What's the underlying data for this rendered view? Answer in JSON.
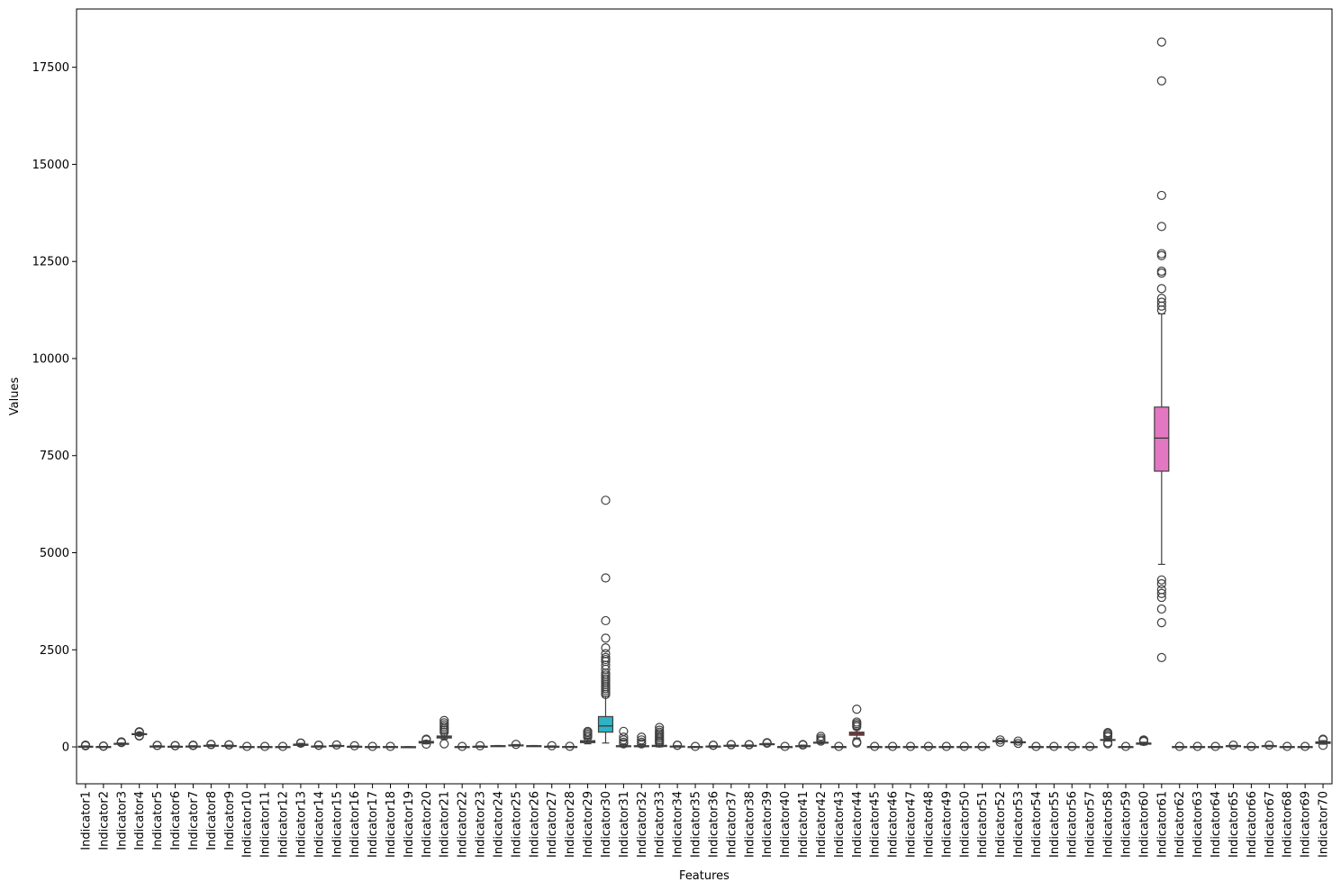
{
  "chart_data": {
    "type": "box",
    "title": "",
    "xlabel": "Features",
    "ylabel": "Values",
    "ylim": [
      -950,
      19000
    ],
    "yticks": [
      0,
      2500,
      5000,
      7500,
      10000,
      12500,
      15000,
      17500
    ],
    "ytick_labels": [
      "0",
      "2500",
      "5000",
      "7500",
      "10000",
      "12500",
      "15000",
      "17500"
    ],
    "grid": false,
    "legend": "none",
    "categories": [
      "Indicator1",
      "Indicator2",
      "Indicator3",
      "Indicator4",
      "Indicator5",
      "Indicator6",
      "Indicator7",
      "Indicator8",
      "Indicator9",
      "Indicator10",
      "Indicator11",
      "Indicator12",
      "Indicator13",
      "Indicator14",
      "Indicator15",
      "Indicator16",
      "Indicator17",
      "Indicator18",
      "Indicator19",
      "Indicator20",
      "Indicator21",
      "Indicator22",
      "Indicator23",
      "Indicator24",
      "Indicator25",
      "Indicator26",
      "Indicator27",
      "Indicator28",
      "Indicator29",
      "Indicator30",
      "Indicator31",
      "Indicator32",
      "Indicator33",
      "Indicator34",
      "Indicator35",
      "Indicator36",
      "Indicator37",
      "Indicator38",
      "Indicator39",
      "Indicator40",
      "Indicator41",
      "Indicator42",
      "Indicator43",
      "Indicator44",
      "Indicator45",
      "Indicator46",
      "Indicator47",
      "Indicator48",
      "Indicator49",
      "Indicator50",
      "Indicator51",
      "Indicator52",
      "Indicator53",
      "Indicator54",
      "Indicator55",
      "Indicator56",
      "Indicator57",
      "Indicator58",
      "Indicator59",
      "Indicator60",
      "Indicator61",
      "Indicator62",
      "Indicator63",
      "Indicator64",
      "Indicator65",
      "Indicator66",
      "Indicator67",
      "Indicator68",
      "Indicator69",
      "Indicator70"
    ],
    "boxes": [
      {
        "q1": 5,
        "median": 10,
        "q3": 15,
        "whisker_low": 0,
        "whisker_high": 25,
        "outliers": [
          30,
          40,
          45
        ],
        "color": "#3274a1"
      },
      {
        "q1": 2,
        "median": 5,
        "q3": 8,
        "whisker_low": 0,
        "whisker_high": 12,
        "outliers": [
          18,
          22
        ],
        "color": "#e1812c"
      },
      {
        "q1": 70,
        "median": 80,
        "q3": 90,
        "whisker_low": 60,
        "whisker_high": 100,
        "outliers": [
          110,
          120,
          130
        ],
        "color": "#3a923a"
      },
      {
        "q1": 320,
        "median": 330,
        "q3": 340,
        "whisker_low": 300,
        "whisker_high": 360,
        "outliers": [
          280,
          290,
          375,
          385,
          390
        ],
        "color": "#c03d3e"
      },
      {
        "q1": 10,
        "median": 15,
        "q3": 20,
        "whisker_low": 0,
        "whisker_high": 30,
        "outliers": [
          35,
          40
        ],
        "color": "#9372b2"
      },
      {
        "q1": 5,
        "median": 10,
        "q3": 15,
        "whisker_low": 0,
        "whisker_high": 25,
        "outliers": [
          30,
          35
        ],
        "color": "#845b53"
      },
      {
        "q1": 5,
        "median": 10,
        "q3": 20,
        "whisker_low": 0,
        "whisker_high": 30,
        "outliers": [
          35,
          40,
          45
        ],
        "color": "#d684bd"
      },
      {
        "q1": 20,
        "median": 30,
        "q3": 40,
        "whisker_low": 10,
        "whisker_high": 55,
        "outliers": [
          60,
          65
        ],
        "color": "#7f7f7f"
      },
      {
        "q1": 15,
        "median": 25,
        "q3": 35,
        "whisker_low": 5,
        "whisker_high": 45,
        "outliers": [
          50,
          55
        ],
        "color": "#a9aa35"
      },
      {
        "q1": 2,
        "median": 4,
        "q3": 6,
        "whisker_low": 0,
        "whisker_high": 10,
        "outliers": [
          12
        ],
        "color": "#2eb2c6"
      },
      {
        "q1": 2,
        "median": 4,
        "q3": 6,
        "whisker_low": 0,
        "whisker_high": 10,
        "outliers": [
          12
        ],
        "color": "#3274a1"
      },
      {
        "q1": 2,
        "median": 4,
        "q3": 6,
        "whisker_low": 0,
        "whisker_high": 10,
        "outliers": [
          12
        ],
        "color": "#e1812c"
      },
      {
        "q1": 40,
        "median": 55,
        "q3": 70,
        "whisker_low": 20,
        "whisker_high": 90,
        "outliers": [
          95,
          100
        ],
        "color": "#3a923a"
      },
      {
        "q1": 5,
        "median": 10,
        "q3": 20,
        "whisker_low": 0,
        "whisker_high": 30,
        "outliers": [
          40,
          45
        ],
        "color": "#c03d3e"
      },
      {
        "q1": 15,
        "median": 25,
        "q3": 35,
        "whisker_low": 5,
        "whisker_high": 45,
        "outliers": [
          50
        ],
        "color": "#9372b2"
      },
      {
        "q1": 5,
        "median": 10,
        "q3": 15,
        "whisker_low": 0,
        "whisker_high": 25,
        "outliers": [
          30
        ],
        "color": "#845b53"
      },
      {
        "q1": 2,
        "median": 4,
        "q3": 6,
        "whisker_low": 0,
        "whisker_high": 10,
        "outliers": [
          12
        ],
        "color": "#d684bd"
      },
      {
        "q1": 2,
        "median": 4,
        "q3": 6,
        "whisker_low": 0,
        "whisker_high": 10,
        "outliers": [
          12
        ],
        "color": "#7f7f7f"
      },
      {
        "q1": 1,
        "median": 2,
        "q3": 3,
        "whisker_low": 0,
        "whisker_high": 5,
        "outliers": [],
        "color": "#a9aa35"
      },
      {
        "q1": 100,
        "median": 120,
        "q3": 140,
        "whisker_low": 80,
        "whisker_high": 160,
        "outliers": [
          70,
          180,
          200
        ],
        "color": "#2eb2c6"
      },
      {
        "q1": 230,
        "median": 250,
        "q3": 280,
        "whisker_low": 200,
        "whisker_high": 330,
        "outliers": [
          80,
          380,
          430,
          470,
          520,
          570,
          620,
          680
        ],
        "color": "#3274a1"
      },
      {
        "q1": 2,
        "median": 4,
        "q3": 6,
        "whisker_low": 0,
        "whisker_high": 10,
        "outliers": [
          12
        ],
        "color": "#e1812c"
      },
      {
        "q1": 5,
        "median": 10,
        "q3": 15,
        "whisker_low": 0,
        "whisker_high": 25,
        "outliers": [
          30
        ],
        "color": "#3a923a"
      },
      {
        "q1": 20,
        "median": 25,
        "q3": 30,
        "whisker_low": 15,
        "whisker_high": 35,
        "outliers": [],
        "color": "#c03d3e"
      },
      {
        "q1": 30,
        "median": 40,
        "q3": 50,
        "whisker_low": 20,
        "whisker_high": 60,
        "outliers": [
          65
        ],
        "color": "#9372b2"
      },
      {
        "q1": 20,
        "median": 25,
        "q3": 30,
        "whisker_low": 15,
        "whisker_high": 35,
        "outliers": [],
        "color": "#845b53"
      },
      {
        "q1": 5,
        "median": 10,
        "q3": 15,
        "whisker_low": 0,
        "whisker_high": 25,
        "outliers": [
          30
        ],
        "color": "#d684bd"
      },
      {
        "q1": 2,
        "median": 5,
        "q3": 8,
        "whisker_low": 0,
        "whisker_high": 12,
        "outliers": [
          15
        ],
        "color": "#7f7f7f"
      },
      {
        "q1": 110,
        "median": 130,
        "q3": 160,
        "whisker_low": 80,
        "whisker_high": 220,
        "outliers": [
          250,
          290,
          330,
          370,
          400
        ],
        "color": "#a9aa35"
      },
      {
        "q1": 380,
        "median": 540,
        "q3": 780,
        "whisker_low": 100,
        "whisker_high": 1300,
        "outliers": [
          1350,
          1400,
          1450,
          1500,
          1550,
          1600,
          1650,
          1700,
          1750,
          1800,
          1850,
          1900,
          2000,
          2100,
          2200,
          2250,
          2300,
          2400,
          2550,
          2800,
          3250,
          4350,
          6350
        ],
        "color": "#2eb2c6"
      },
      {
        "q1": 5,
        "median": 15,
        "q3": 30,
        "whisker_low": 0,
        "whisker_high": 60,
        "outliers": [
          80,
          120,
          180,
          250,
          400
        ],
        "color": "#3274a1"
      },
      {
        "q1": 5,
        "median": 15,
        "q3": 30,
        "whisker_low": 0,
        "whisker_high": 60,
        "outliers": [
          80,
          120,
          180,
          250
        ],
        "color": "#e1812c"
      },
      {
        "q1": 10,
        "median": 20,
        "q3": 40,
        "whisker_low": 0,
        "whisker_high": 80,
        "outliers": [
          100,
          140,
          180,
          220,
          260,
          300,
          340,
          380,
          430,
          500
        ],
        "color": "#3a923a"
      },
      {
        "q1": 5,
        "median": 10,
        "q3": 20,
        "whisker_low": 0,
        "whisker_high": 30,
        "outliers": [
          40,
          45
        ],
        "color": "#c03d3e"
      },
      {
        "q1": 2,
        "median": 4,
        "q3": 6,
        "whisker_low": 0,
        "whisker_high": 10,
        "outliers": [
          12
        ],
        "color": "#9372b2"
      },
      {
        "q1": 5,
        "median": 10,
        "q3": 20,
        "whisker_low": 0,
        "whisker_high": 30,
        "outliers": [
          40,
          45
        ],
        "color": "#845b53"
      },
      {
        "q1": 20,
        "median": 30,
        "q3": 40,
        "whisker_low": 10,
        "whisker_high": 50,
        "outliers": [
          55,
          60
        ],
        "color": "#d684bd"
      },
      {
        "q1": 20,
        "median": 30,
        "q3": 40,
        "whisker_low": 10,
        "whisker_high": 50,
        "outliers": [
          55,
          60
        ],
        "color": "#7f7f7f"
      },
      {
        "q1": 60,
        "median": 70,
        "q3": 80,
        "whisker_low": 50,
        "whisker_high": 90,
        "outliers": [
          95,
          100,
          110
        ],
        "color": "#a9aa35"
      },
      {
        "q1": 2,
        "median": 4,
        "q3": 6,
        "whisker_low": 0,
        "whisker_high": 10,
        "outliers": [
          12
        ],
        "color": "#2eb2c6"
      },
      {
        "q1": 10,
        "median": 20,
        "q3": 30,
        "whisker_low": 0,
        "whisker_high": 45,
        "outliers": [
          50,
          60
        ],
        "color": "#3274a1"
      },
      {
        "q1": 100,
        "median": 110,
        "q3": 120,
        "whisker_low": 90,
        "whisker_high": 140,
        "outliers": [
          150,
          180,
          220,
          270
        ],
        "color": "#e1812c"
      },
      {
        "q1": 2,
        "median": 4,
        "q3": 6,
        "whisker_low": 0,
        "whisker_high": 10,
        "outliers": [
          12
        ],
        "color": "#3a923a"
      },
      {
        "q1": 300,
        "median": 340,
        "q3": 380,
        "whisker_low": 230,
        "whisker_high": 450,
        "outliers": [
          100,
          130,
          520,
          560,
          600,
          640,
          970
        ],
        "color": "#c03d3e"
      },
      {
        "q1": 2,
        "median": 4,
        "q3": 6,
        "whisker_low": 0,
        "whisker_high": 10,
        "outliers": [
          12
        ],
        "color": "#9372b2"
      },
      {
        "q1": 2,
        "median": 4,
        "q3": 6,
        "whisker_low": 0,
        "whisker_high": 10,
        "outliers": [
          12
        ],
        "color": "#845b53"
      },
      {
        "q1": 2,
        "median": 4,
        "q3": 6,
        "whisker_low": 0,
        "whisker_high": 10,
        "outliers": [
          12
        ],
        "color": "#d684bd"
      },
      {
        "q1": 2,
        "median": 4,
        "q3": 6,
        "whisker_low": 0,
        "whisker_high": 10,
        "outliers": [
          12
        ],
        "color": "#7f7f7f"
      },
      {
        "q1": 2,
        "median": 4,
        "q3": 6,
        "whisker_low": 0,
        "whisker_high": 10,
        "outliers": [
          12
        ],
        "color": "#a9aa35"
      },
      {
        "q1": 2,
        "median": 4,
        "q3": 6,
        "whisker_low": 0,
        "whisker_high": 10,
        "outliers": [
          12
        ],
        "color": "#2eb2c6"
      },
      {
        "q1": 2,
        "median": 4,
        "q3": 6,
        "whisker_low": 0,
        "whisker_high": 10,
        "outliers": [
          12
        ],
        "color": "#3274a1"
      },
      {
        "q1": 140,
        "median": 150,
        "q3": 160,
        "whisker_low": 130,
        "whisker_high": 170,
        "outliers": [
          120,
          180
        ],
        "color": "#e1812c"
      },
      {
        "q1": 110,
        "median": 120,
        "q3": 130,
        "whisker_low": 100,
        "whisker_high": 140,
        "outliers": [
          90,
          150
        ],
        "color": "#3a923a"
      },
      {
        "q1": 2,
        "median": 4,
        "q3": 6,
        "whisker_low": 0,
        "whisker_high": 10,
        "outliers": [
          12
        ],
        "color": "#c03d3e"
      },
      {
        "q1": 2,
        "median": 4,
        "q3": 6,
        "whisker_low": 0,
        "whisker_high": 10,
        "outliers": [
          12
        ],
        "color": "#9372b2"
      },
      {
        "q1": 2,
        "median": 4,
        "q3": 6,
        "whisker_low": 0,
        "whisker_high": 10,
        "outliers": [
          12
        ],
        "color": "#845b53"
      },
      {
        "q1": 2,
        "median": 4,
        "q3": 6,
        "whisker_low": 0,
        "whisker_high": 10,
        "outliers": [
          12
        ],
        "color": "#d684bd"
      },
      {
        "q1": 170,
        "median": 180,
        "q3": 190,
        "whisker_low": 150,
        "whisker_high": 220,
        "outliers": [
          80,
          110,
          260,
          300,
          340,
          370
        ],
        "color": "#7f7f7f"
      },
      {
        "q1": 2,
        "median": 4,
        "q3": 6,
        "whisker_low": 0,
        "whisker_high": 10,
        "outliers": [
          12
        ],
        "color": "#a9aa35"
      },
      {
        "q1": 70,
        "median": 85,
        "q3": 100,
        "whisker_low": 50,
        "whisker_high": 120,
        "outliers": [
          140,
          160,
          180
        ],
        "color": "#2eb2c6"
      },
      {
        "q1": 7100,
        "median": 7950,
        "q3": 8750,
        "whisker_low": 4700,
        "whisker_high": 11150,
        "outliers": [
          2300,
          3200,
          3550,
          3850,
          3950,
          4050,
          4200,
          4300,
          11250,
          11350,
          11450,
          11550,
          11800,
          12200,
          12250,
          12650,
          12700,
          13400,
          14200,
          17150,
          18150
        ],
        "color": "#e377c2"
      },
      {
        "q1": 2,
        "median": 4,
        "q3": 6,
        "whisker_low": 0,
        "whisker_high": 10,
        "outliers": [
          12
        ],
        "color": "#3274a1"
      },
      {
        "q1": 2,
        "median": 4,
        "q3": 6,
        "whisker_low": 0,
        "whisker_high": 10,
        "outliers": [
          12
        ],
        "color": "#e1812c"
      },
      {
        "q1": 2,
        "median": 4,
        "q3": 6,
        "whisker_low": 0,
        "whisker_high": 10,
        "outliers": [
          12
        ],
        "color": "#3a923a"
      },
      {
        "q1": 20,
        "median": 25,
        "q3": 30,
        "whisker_low": 10,
        "whisker_high": 40,
        "outliers": [
          45
        ],
        "color": "#c03d3e"
      },
      {
        "q1": 2,
        "median": 4,
        "q3": 6,
        "whisker_low": 0,
        "whisker_high": 10,
        "outliers": [
          12
        ],
        "color": "#9372b2"
      },
      {
        "q1": 20,
        "median": 25,
        "q3": 30,
        "whisker_low": 10,
        "whisker_high": 40,
        "outliers": [
          45
        ],
        "color": "#845b53"
      },
      {
        "q1": 2,
        "median": 4,
        "q3": 6,
        "whisker_low": 0,
        "whisker_high": 10,
        "outliers": [
          12
        ],
        "color": "#d684bd"
      },
      {
        "q1": 2,
        "median": 4,
        "q3": 6,
        "whisker_low": 0,
        "whisker_high": 10,
        "outliers": [
          12
        ],
        "color": "#7f7f7f"
      },
      {
        "q1": 90,
        "median": 110,
        "q3": 130,
        "whisker_low": 70,
        "whisker_high": 160,
        "outliers": [
          40,
          180,
          200
        ],
        "color": "#a9aa35"
      }
    ]
  }
}
